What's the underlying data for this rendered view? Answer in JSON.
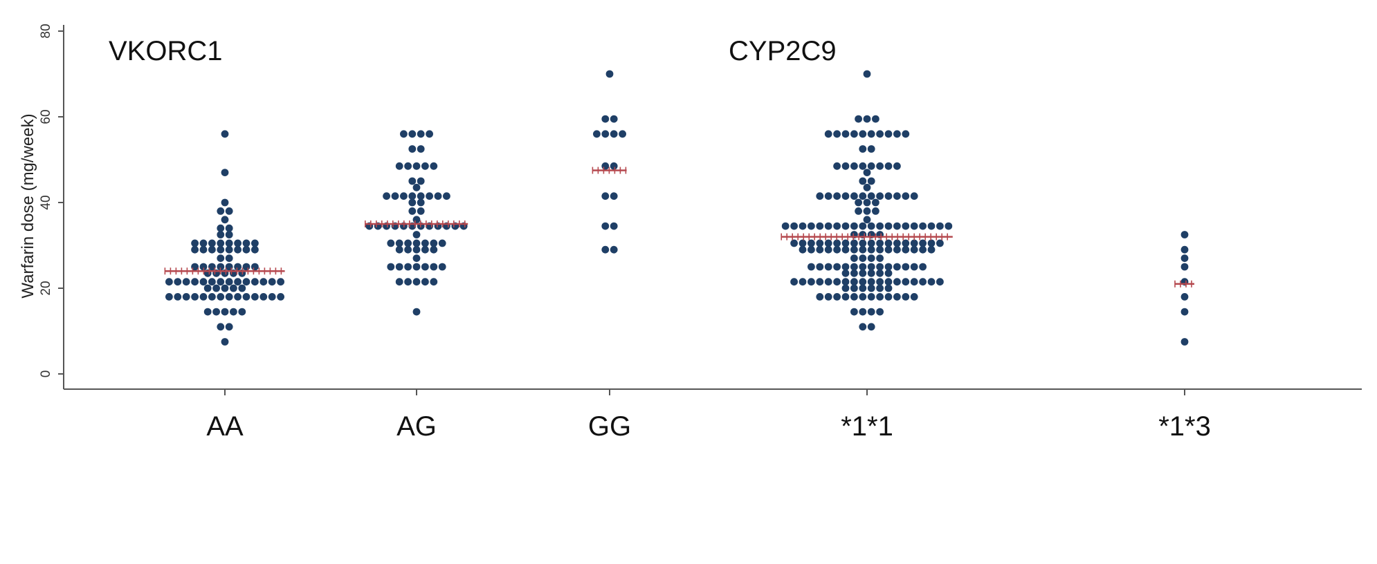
{
  "chart_data": {
    "type": "scatter",
    "subtype": "dot-plot",
    "ylabel": "Warfarin dose (mg/week)",
    "ylim": [
      0,
      80
    ],
    "yticks": [
      0,
      20,
      40,
      60,
      80
    ],
    "grid": false,
    "annotations": [
      "VKORC1",
      "CYP2C9"
    ],
    "colors": {
      "point": "#1f3f66",
      "median": "#b5484e",
      "axis": "#555555"
    },
    "groups": [
      {
        "category": "AA",
        "panel": "VKORC1",
        "median": 24,
        "rows": [
          {
            "y": 7.5,
            "n": 1
          },
          {
            "y": 11,
            "n": 2
          },
          {
            "y": 14.5,
            "n": 5
          },
          {
            "y": 18,
            "n": 14
          },
          {
            "y": 20,
            "n": 5
          },
          {
            "y": 21.5,
            "n": 14
          },
          {
            "y": 23.5,
            "n": 5
          },
          {
            "y": 25,
            "n": 8
          },
          {
            "y": 27,
            "n": 2
          },
          {
            "y": 29,
            "n": 8
          },
          {
            "y": 30.5,
            "n": 8
          },
          {
            "y": 32.5,
            "n": 2
          },
          {
            "y": 34,
            "n": 2
          },
          {
            "y": 36,
            "n": 1
          },
          {
            "y": 38,
            "n": 2
          },
          {
            "y": 40,
            "n": 1
          },
          {
            "y": 47,
            "n": 1
          },
          {
            "y": 56,
            "n": 1
          }
        ]
      },
      {
        "category": "AG",
        "panel": "VKORC1",
        "median": 35,
        "rows": [
          {
            "y": 14.5,
            "n": 1
          },
          {
            "y": 21.5,
            "n": 5
          },
          {
            "y": 25,
            "n": 7
          },
          {
            "y": 27,
            "n": 1
          },
          {
            "y": 29,
            "n": 5
          },
          {
            "y": 30.5,
            "n": 7
          },
          {
            "y": 32.5,
            "n": 1
          },
          {
            "y": 34.5,
            "n": 12
          },
          {
            "y": 36,
            "n": 1
          },
          {
            "y": 38,
            "n": 2
          },
          {
            "y": 40,
            "n": 2
          },
          {
            "y": 41.5,
            "n": 8
          },
          {
            "y": 43.5,
            "n": 1
          },
          {
            "y": 45,
            "n": 2
          },
          {
            "y": 48.5,
            "n": 5
          },
          {
            "y": 52.5,
            "n": 2
          },
          {
            "y": 56,
            "n": 4
          }
        ]
      },
      {
        "category": "GG",
        "panel": "VKORC1",
        "median": 47.5,
        "rows": [
          {
            "y": 29,
            "n": 2
          },
          {
            "y": 34.5,
            "n": 2
          },
          {
            "y": 41.5,
            "n": 2
          },
          {
            "y": 48.5,
            "n": 2
          },
          {
            "y": 56,
            "n": 4
          },
          {
            "y": 59.5,
            "n": 2
          },
          {
            "y": 70,
            "n": 1
          }
        ]
      },
      {
        "category": "*1*1",
        "panel": "CYP2C9",
        "median": 32,
        "rows": [
          {
            "y": 11,
            "n": 2
          },
          {
            "y": 14.5,
            "n": 4
          },
          {
            "y": 18,
            "n": 12
          },
          {
            "y": 20,
            "n": 6
          },
          {
            "y": 21.5,
            "n": 18
          },
          {
            "y": 23.5,
            "n": 6
          },
          {
            "y": 25,
            "n": 14
          },
          {
            "y": 27,
            "n": 4
          },
          {
            "y": 29,
            "n": 16
          },
          {
            "y": 30.5,
            "n": 18
          },
          {
            "y": 32.5,
            "n": 4
          },
          {
            "y": 34.5,
            "n": 20
          },
          {
            "y": 36,
            "n": 1
          },
          {
            "y": 38,
            "n": 3
          },
          {
            "y": 40,
            "n": 3
          },
          {
            "y": 41.5,
            "n": 12
          },
          {
            "y": 43.5,
            "n": 1
          },
          {
            "y": 45,
            "n": 2
          },
          {
            "y": 47,
            "n": 1
          },
          {
            "y": 48.5,
            "n": 8
          },
          {
            "y": 52.5,
            "n": 2
          },
          {
            "y": 56,
            "n": 10
          },
          {
            "y": 59.5,
            "n": 3
          },
          {
            "y": 70,
            "n": 1
          }
        ]
      },
      {
        "category": "*1*3",
        "panel": "CYP2C9",
        "median": 21,
        "rows": [
          {
            "y": 7.5,
            "n": 1
          },
          {
            "y": 14.5,
            "n": 1
          },
          {
            "y": 18,
            "n": 1
          },
          {
            "y": 21.5,
            "n": 1
          },
          {
            "y": 25,
            "n": 1
          },
          {
            "y": 27,
            "n": 1
          },
          {
            "y": 29,
            "n": 1
          },
          {
            "y": 32.5,
            "n": 1
          }
        ]
      }
    ]
  }
}
